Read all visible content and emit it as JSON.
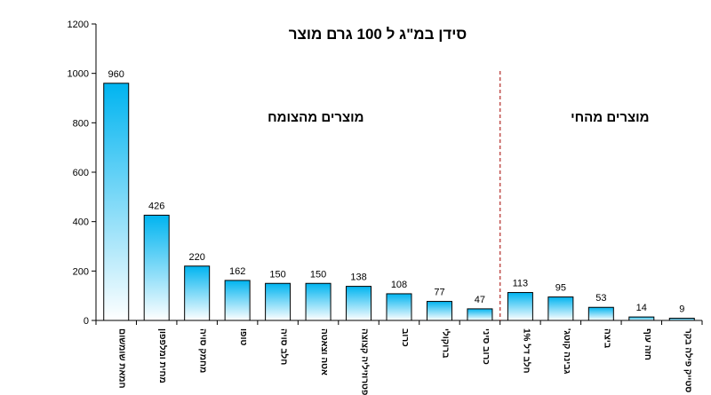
{
  "chart_data": {
    "type": "bar",
    "title": "סידן במ\"ג ל 100 גרם מוצר",
    "categories": [
      "חמאת שומשום",
      "מחית ומלפפון",
      "מחמק סויה",
      "טופו",
      "חלב סויה",
      "אטה וצאטה",
      "פטרוזיליה קצוצה",
      "כרוב",
      "ברוקולי",
      "כרוב סיני",
      "חלב דל 1%",
      "גבינה קוטג'",
      "ביצה",
      "חזה עוף",
      "סטייק פילה בקר"
    ],
    "values": [
      960,
      426,
      220,
      162,
      150,
      150,
      138,
      108,
      77,
      47,
      113,
      95,
      53,
      14,
      9
    ],
    "ylim": [
      0,
      1200
    ],
    "yticks": [
      0,
      200,
      400,
      600,
      800,
      1000,
      1200
    ],
    "xlabel": "",
    "ylabel": "",
    "grid": false,
    "groups": [
      {
        "label": "מוצרים מהצומח",
        "count": 10
      },
      {
        "label": "מוצרים מהחי",
        "count": 5
      }
    ],
    "bar_color_top": "#00b4f0",
    "bar_color_bottom": "#ffffff",
    "divider_color": "#c0504d"
  }
}
